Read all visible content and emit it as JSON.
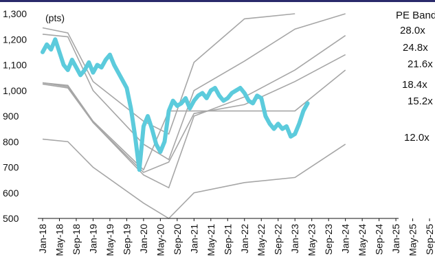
{
  "chart_data": {
    "type": "line",
    "unit_label": "(pts)",
    "legend_title": "PE Band",
    "y_ticks": [
      "1,300",
      "1,200",
      "1,100",
      "1,000",
      "900",
      "800",
      "700",
      "600",
      "500"
    ],
    "ylim": [
      500,
      1300
    ],
    "x_ticks": [
      "Jan-18",
      "May-18",
      "Sep-18",
      "Jan-19",
      "May-19",
      "Sep-19",
      "Jan-20",
      "May-20",
      "Sep-20",
      "Jan-21",
      "May-21",
      "Sep-21",
      "Jan-22",
      "May-22",
      "Sep-22",
      "Jan-23",
      "May-23",
      "Sep-23",
      "Jan-24",
      "May-24",
      "Sep-24",
      "Jan-25",
      "May-25",
      "Sep-25"
    ],
    "colors": {
      "index": "#5ccbdc",
      "band": "#a6a6a6",
      "topline": "#2a2a6a"
    },
    "bands": [
      {
        "label": "28.0x",
        "points": [
          [
            0,
            1245
          ],
          [
            6,
            1225
          ],
          [
            12,
            1035
          ],
          [
            24,
            880
          ],
          [
            30,
            830
          ],
          [
            36,
            1110
          ],
          [
            48,
            1280
          ],
          [
            60,
            1300
          ]
        ]
      },
      {
        "label": "24.8x",
        "points": [
          [
            0,
            1220
          ],
          [
            6,
            1210
          ],
          [
            12,
            1000
          ],
          [
            24,
            790
          ],
          [
            30,
            730
          ],
          [
            36,
            1000
          ],
          [
            48,
            1115
          ],
          [
            60,
            1240
          ],
          [
            72,
            1300
          ]
        ]
      },
      {
        "label": "21.6x",
        "points": [
          [
            0,
            1025
          ],
          [
            6,
            1010
          ],
          [
            12,
            875
          ],
          [
            24,
            670
          ],
          [
            30,
            620
          ],
          [
            36,
            900
          ],
          [
            48,
            975
          ],
          [
            60,
            1080
          ],
          [
            72,
            1215
          ]
        ]
      },
      {
        "label": "18.4x",
        "points": [
          [
            0,
            1030
          ],
          [
            6,
            1015
          ],
          [
            12,
            875
          ],
          [
            24,
            680
          ],
          [
            30,
            720
          ],
          [
            36,
            910
          ],
          [
            48,
            945
          ],
          [
            60,
            1035
          ],
          [
            72,
            1140
          ]
        ]
      },
      {
        "label": "15.2x",
        "points": [
          [
            0,
            1030
          ],
          [
            6,
            1020
          ],
          [
            12,
            880
          ],
          [
            24,
            690
          ],
          [
            30,
            920
          ],
          [
            36,
            920
          ],
          [
            48,
            920
          ],
          [
            60,
            920
          ],
          [
            72,
            1080
          ]
        ]
      },
      {
        "label": "12.0x",
        "points": [
          [
            0,
            810
          ],
          [
            6,
            800
          ],
          [
            12,
            700
          ],
          [
            24,
            560
          ],
          [
            30,
            500
          ],
          [
            36,
            600
          ],
          [
            48,
            640
          ],
          [
            60,
            660
          ],
          [
            72,
            790
          ]
        ]
      }
    ],
    "series": [
      {
        "points": [
          [
            0,
            1150
          ],
          [
            1,
            1180
          ],
          [
            2,
            1160
          ],
          [
            3,
            1200
          ],
          [
            4,
            1150
          ],
          [
            5,
            1100
          ],
          [
            6,
            1080
          ],
          [
            7,
            1120
          ],
          [
            8,
            1090
          ],
          [
            9,
            1060
          ],
          [
            10,
            1080
          ],
          [
            11,
            1110
          ],
          [
            12,
            1070
          ],
          [
            13,
            1100
          ],
          [
            14,
            1090
          ],
          [
            15,
            1120
          ],
          [
            16,
            1140
          ],
          [
            17,
            1100
          ],
          [
            18,
            1070
          ],
          [
            19,
            1040
          ],
          [
            20,
            1010
          ],
          [
            21,
            930
          ],
          [
            22,
            820
          ],
          [
            23,
            690
          ],
          [
            24,
            860
          ],
          [
            25,
            900
          ],
          [
            26,
            850
          ],
          [
            27,
            790
          ],
          [
            28,
            760
          ],
          [
            29,
            800
          ],
          [
            30,
            920
          ],
          [
            31,
            960
          ],
          [
            32,
            940
          ],
          [
            33,
            950
          ],
          [
            34,
            970
          ],
          [
            35,
            930
          ],
          [
            36,
            960
          ],
          [
            37,
            980
          ],
          [
            38,
            990
          ],
          [
            39,
            970
          ],
          [
            40,
            1000
          ],
          [
            41,
            1010
          ],
          [
            42,
            980
          ],
          [
            43,
            960
          ],
          [
            44,
            970
          ],
          [
            45,
            990
          ],
          [
            46,
            1000
          ],
          [
            47,
            1010
          ],
          [
            48,
            990
          ],
          [
            49,
            960
          ],
          [
            50,
            950
          ],
          [
            51,
            980
          ],
          [
            52,
            970
          ],
          [
            53,
            900
          ],
          [
            54,
            870
          ],
          [
            55,
            850
          ],
          [
            56,
            870
          ],
          [
            57,
            850
          ],
          [
            58,
            860
          ],
          [
            59,
            820
          ],
          [
            60,
            830
          ],
          [
            61,
            870
          ],
          [
            62,
            920
          ],
          [
            63,
            950
          ]
        ]
      }
    ]
  }
}
